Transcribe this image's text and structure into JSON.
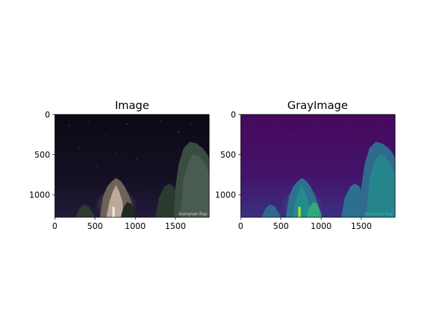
{
  "chart_data": [
    {
      "type": "image",
      "title": "Image",
      "colormap": "rgb",
      "xlim": [
        0,
        1920
      ],
      "ylim": [
        1280,
        0
      ],
      "xticks": [
        0,
        500,
        1000,
        1500
      ],
      "yticks": [
        0,
        500,
        1000
      ],
      "x_tick_labels": [
        "0",
        "500",
        "1000",
        "1500"
      ],
      "y_tick_labels": [
        "0",
        "500",
        "1000"
      ],
      "watermark": "Sumanan Ray"
    },
    {
      "type": "image",
      "title": "GrayImage",
      "colormap": "viridis",
      "xlim": [
        0,
        1920
      ],
      "ylim": [
        1280,
        0
      ],
      "xticks": [
        0,
        500,
        1000,
        1500
      ],
      "yticks": [
        0,
        500,
        1000
      ],
      "x_tick_labels": [
        "0",
        "500",
        "1000",
        "1500"
      ],
      "y_tick_labels": [
        "0",
        "500",
        "1000"
      ],
      "watermark": "Sumanan Ray"
    }
  ],
  "colors": {
    "sky_rgb_top": "#0c0a14",
    "sky_rgb_bottom": "#221a3a",
    "sky_gray_top": "#46085c",
    "sky_gray_bottom": "#3d2a7e",
    "tree_rgb": "#2a3a2e",
    "tree_lit": "#c9b6a6",
    "tree_gray": "#2d6f8e",
    "tree_gray_lit": "#35b779",
    "highlight_gray": "#b5de2b"
  }
}
